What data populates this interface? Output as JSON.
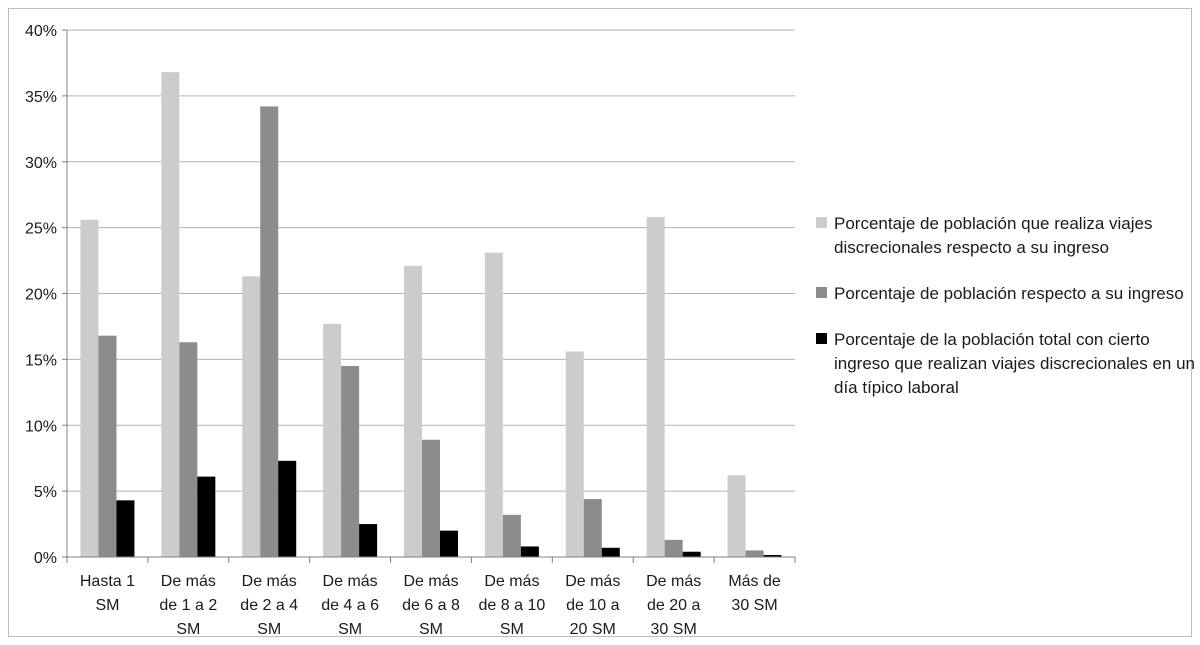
{
  "chart_data": {
    "type": "bar",
    "categories": [
      [
        "Hasta 1",
        "SM"
      ],
      [
        "De más",
        "de 1 a 2",
        "SM"
      ],
      [
        "De más",
        "de 2 a 4",
        "SM"
      ],
      [
        "De más",
        "de 4 a 6",
        "SM"
      ],
      [
        "De más",
        "de 6 a 8",
        "SM"
      ],
      [
        "De más",
        "de 8 a 10",
        "SM"
      ],
      [
        "De más",
        "de 10 a",
        "20 SM"
      ],
      [
        "De más",
        "de 20 a",
        "30 SM"
      ],
      [
        "Más de",
        "30 SM"
      ]
    ],
    "series": [
      {
        "name": "Porcentaje de población que realiza viajes discrecionales respecto a su ingreso",
        "color": "#cccccc",
        "values": [
          25.6,
          36.8,
          21.3,
          17.7,
          22.1,
          23.1,
          15.6,
          25.8,
          6.2
        ]
      },
      {
        "name": "Porcentaje de población respecto a su ingreso",
        "color": "#8c8c8c",
        "values": [
          16.8,
          16.3,
          34.2,
          14.5,
          8.9,
          3.2,
          4.4,
          1.3,
          0.5
        ]
      },
      {
        "name": "Porcentaje de la población total con cierto ingreso que realizan viajes discrecionales en un día típico laboral",
        "color": "#000000",
        "values": [
          4.3,
          6.1,
          7.3,
          2.5,
          2.0,
          0.8,
          0.7,
          0.4,
          0.15
        ]
      }
    ],
    "yticks": [
      "0%",
      "5%",
      "10%",
      "15%",
      "20%",
      "25%",
      "30%",
      "35%",
      "40%"
    ],
    "ylim": [
      0,
      40
    ],
    "grid": true,
    "legend_position": "right"
  }
}
